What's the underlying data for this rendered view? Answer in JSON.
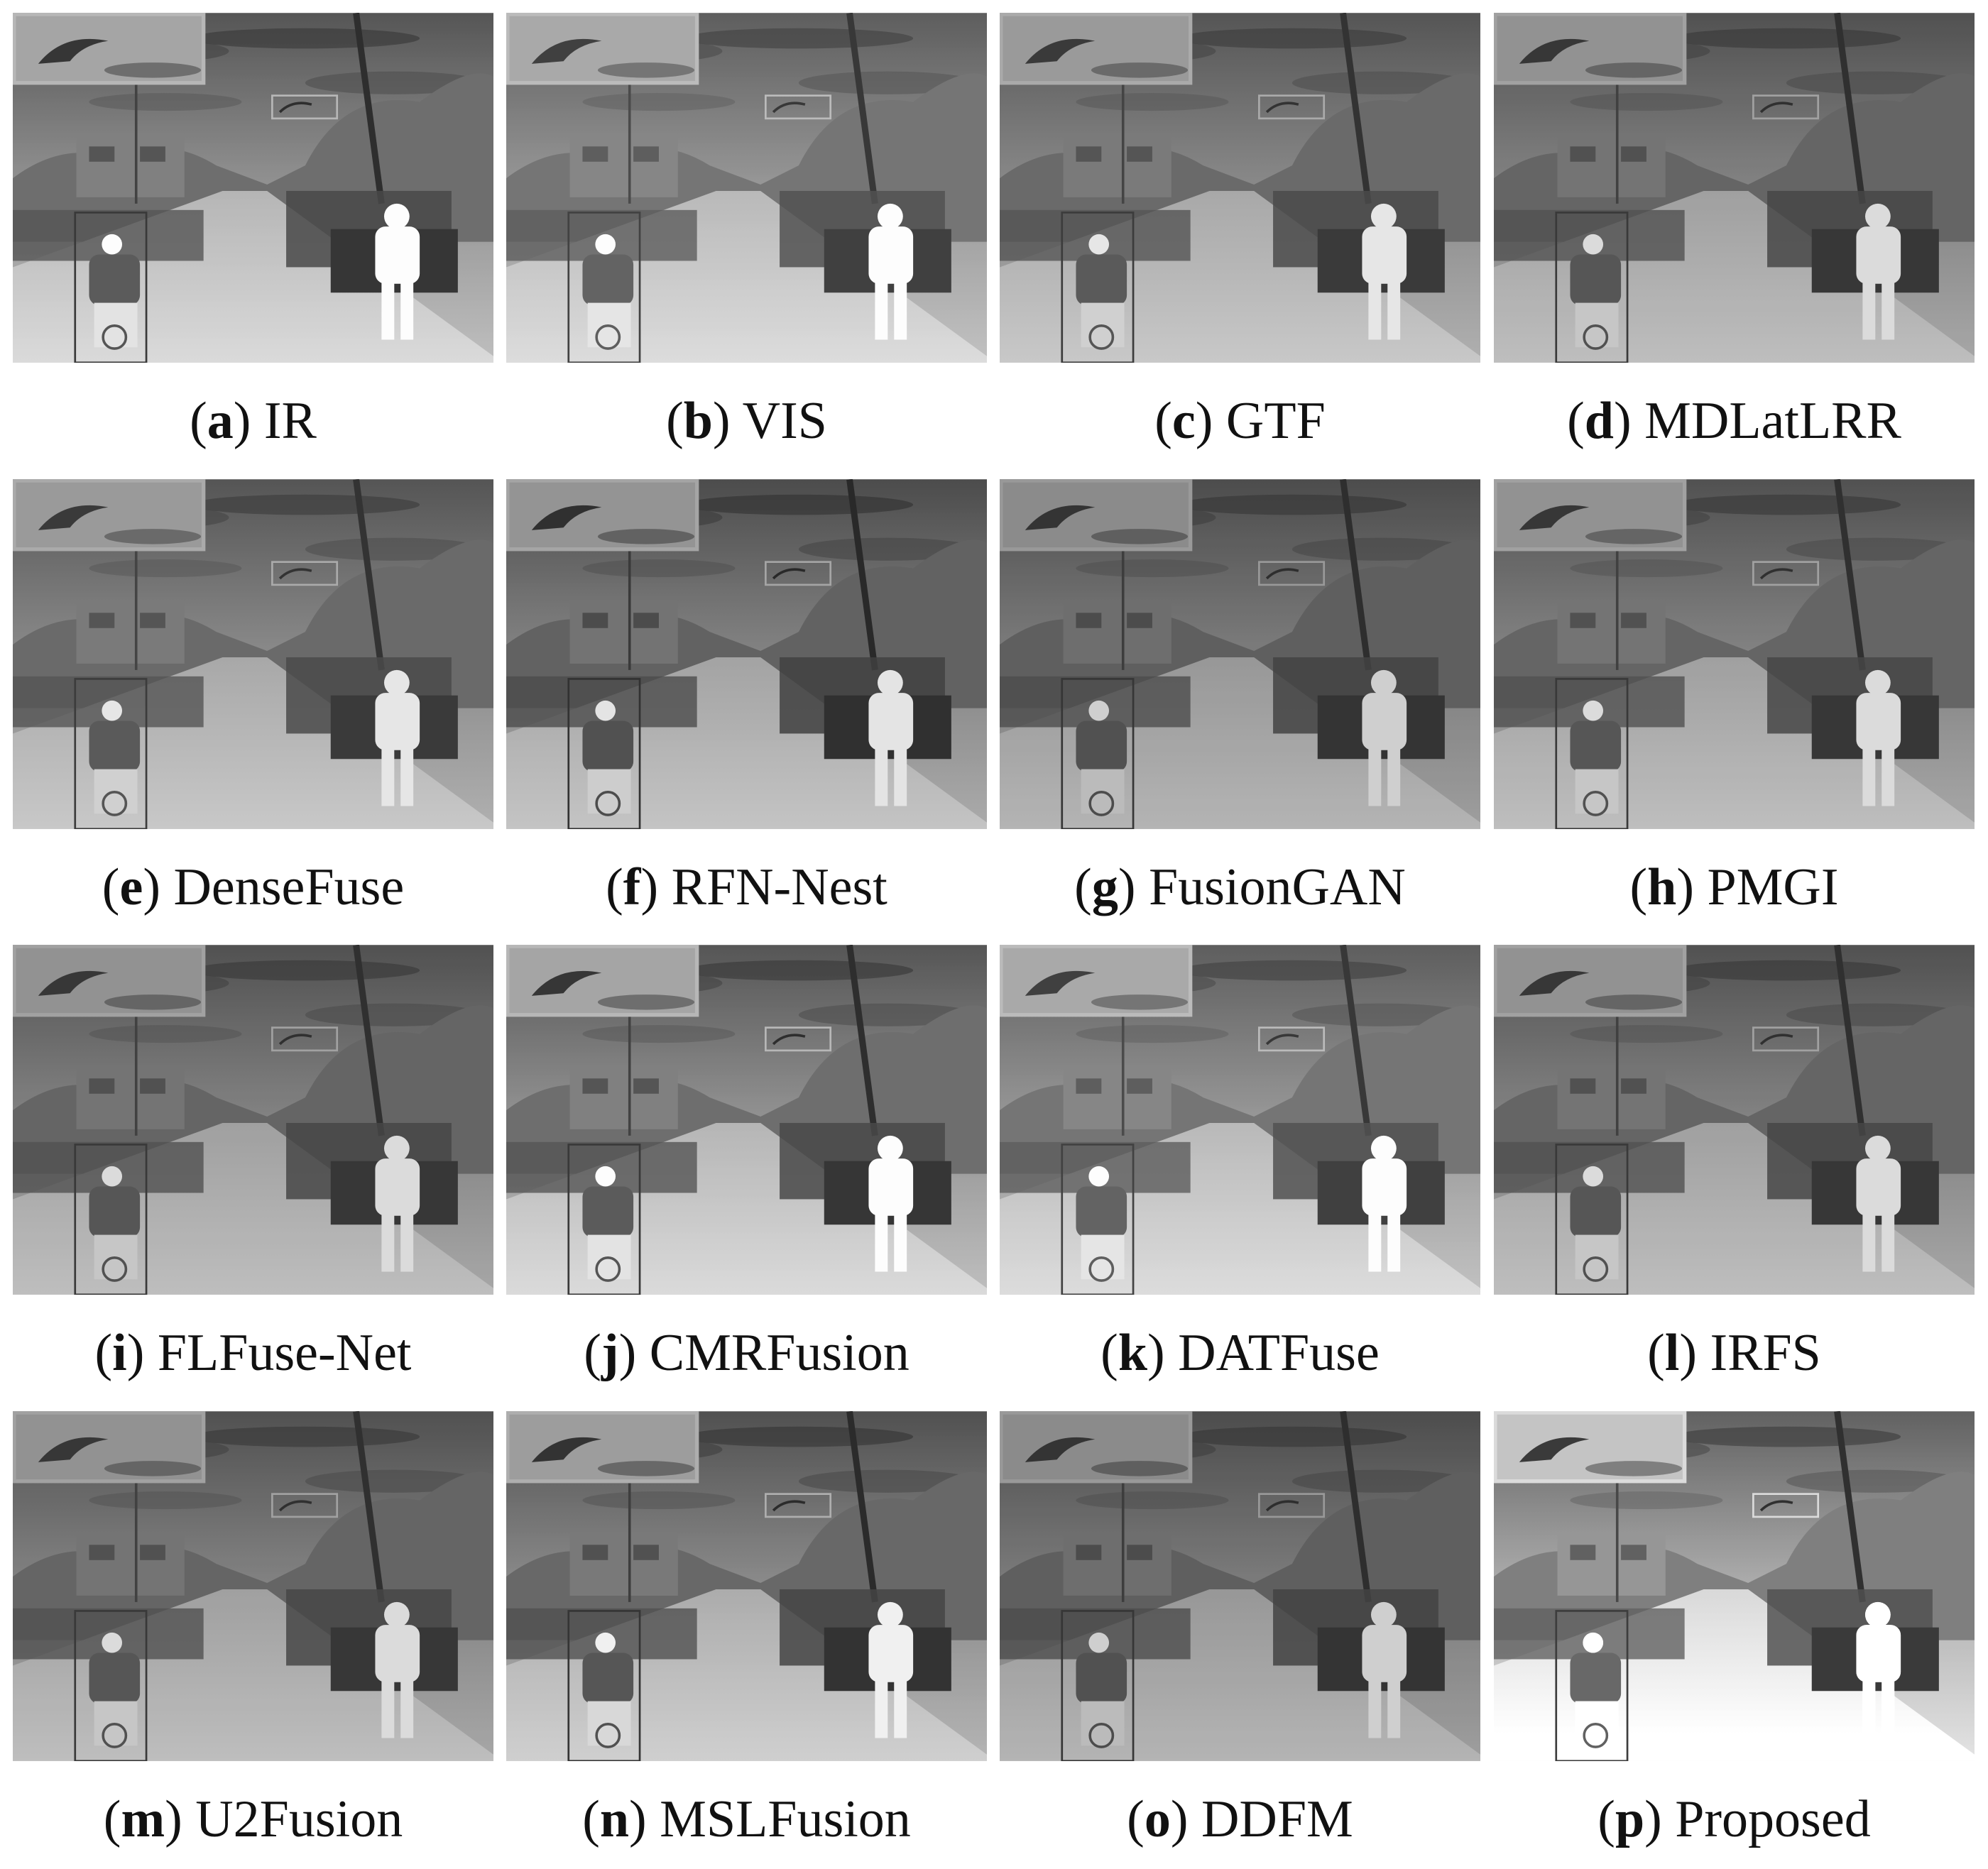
{
  "figure": {
    "panels": [
      {
        "caption": "(a) IR"
      },
      {
        "caption": "(b) VIS"
      },
      {
        "caption": "(c) GTF"
      },
      {
        "caption": "(d) MDLatLRR"
      },
      {
        "caption": "(e) DenseFuse"
      },
      {
        "caption": "(f) RFN-Nest"
      },
      {
        "caption": "(g) FusionGAN"
      },
      {
        "caption": "(h) PMGI"
      },
      {
        "caption": "(i) FLFuse-Net"
      },
      {
        "caption": "(j) CMRFusion"
      },
      {
        "caption": "(k) DATFuse"
      },
      {
        "caption": "(l) IRFS"
      },
      {
        "caption": "(m) U2Fusion"
      },
      {
        "caption": "(n) MSLFusion"
      },
      {
        "caption": "(o) DDFM"
      },
      {
        "caption": "(p) Proposed"
      }
    ]
  }
}
